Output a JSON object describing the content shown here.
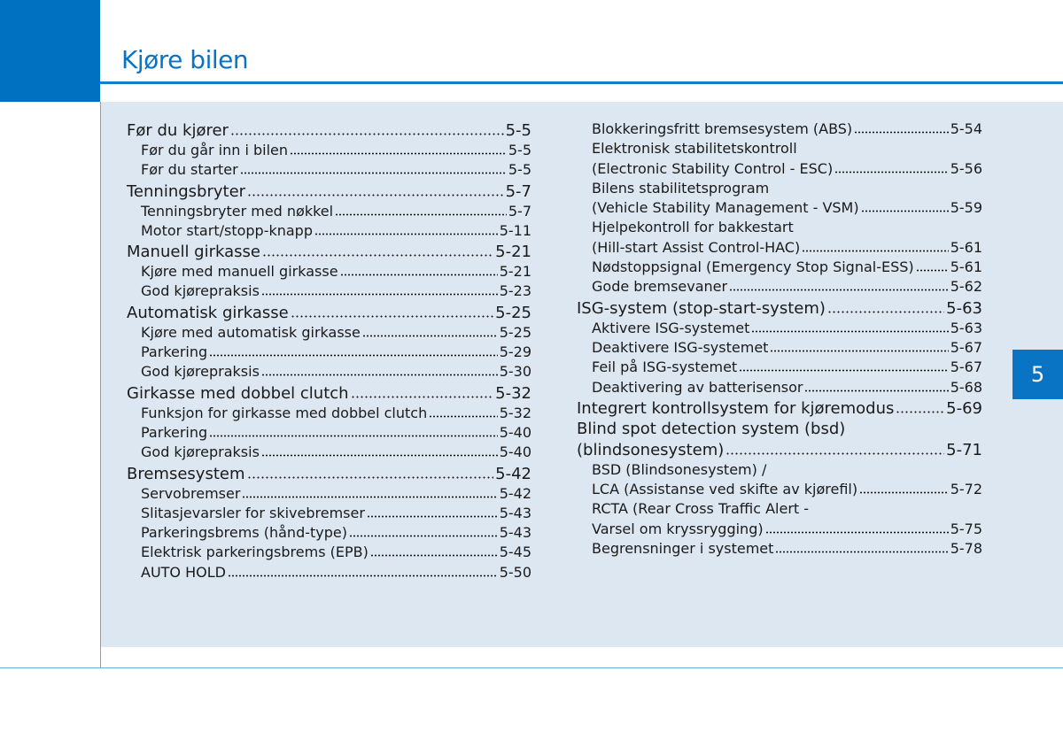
{
  "chapter": {
    "title": "Kjøre bilen",
    "tab_number": "5"
  },
  "toc_left": [
    {
      "level": 1,
      "text": "Før du kjører",
      "page": "5-5"
    },
    {
      "level": 2,
      "text": "Før du går inn i bilen",
      "page": "5-5"
    },
    {
      "level": 2,
      "text": "Før du starter",
      "page": "5-5"
    },
    {
      "level": 1,
      "text": "Tenningsbryter",
      "page": "5-7"
    },
    {
      "level": 2,
      "text": "Tenningsbryter med nøkkel",
      "page": "5-7"
    },
    {
      "level": 2,
      "text": "Motor start/stopp-knapp",
      "page": "5-11"
    },
    {
      "level": 1,
      "text": "Manuell girkasse",
      "page": "5-21"
    },
    {
      "level": 2,
      "text": "Kjøre med manuell girkasse",
      "page": "5-21"
    },
    {
      "level": 2,
      "text": "God kjørepraksis",
      "page": "5-23"
    },
    {
      "level": 1,
      "text": "Automatisk girkasse",
      "page": "5-25"
    },
    {
      "level": 2,
      "text": "Kjøre med automatisk girkasse",
      "page": "5-25"
    },
    {
      "level": 2,
      "text": "Parkering",
      "page": "5-29"
    },
    {
      "level": 2,
      "text": "God kjørepraksis",
      "page": "5-30"
    },
    {
      "level": 1,
      "text": "Girkasse med dobbel clutch",
      "page": "5-32"
    },
    {
      "level": 2,
      "text": "Funksjon for girkasse med dobbel clutch",
      "page": "5-32"
    },
    {
      "level": 2,
      "text": "Parkering",
      "page": "5-40"
    },
    {
      "level": 2,
      "text": "God kjørepraksis",
      "page": "5-40"
    },
    {
      "level": 1,
      "text": "Bremsesystem",
      "page": "5-42"
    },
    {
      "level": 2,
      "text": "Servobremser",
      "page": "5-42"
    },
    {
      "level": 2,
      "text": "Slitasjevarsler for skivebremser",
      "page": "5-43"
    },
    {
      "level": 2,
      "text": "Parkeringsbrems (hånd-type)",
      "page": "5-43"
    },
    {
      "level": 2,
      "text": "Elektrisk parkeringsbrems (EPB)",
      "page": "5-45"
    },
    {
      "level": 2,
      "text": "AUTO HOLD",
      "page": "5-50"
    }
  ],
  "toc_right": [
    {
      "level": 2,
      "text": "Blokkeringsfritt bremsesystem (ABS)",
      "page": "5-54"
    },
    {
      "level": 2,
      "text": "Elektronisk stabilitetskontroll",
      "page": ""
    },
    {
      "level": 2,
      "text": "(Electronic Stability Control - ESC)",
      "page": "5-56"
    },
    {
      "level": 2,
      "text": "Bilens stabilitetsprogram",
      "page": ""
    },
    {
      "level": 2,
      "text": "(Vehicle Stability Management - VSM)",
      "page": "5-59"
    },
    {
      "level": 2,
      "text": "Hjelpekontroll for bakkestart",
      "page": ""
    },
    {
      "level": 2,
      "text": "(Hill-start Assist Control-HAC)",
      "page": "5-61"
    },
    {
      "level": 2,
      "text": "Nødstoppsignal (Emergency Stop Signal-ESS)",
      "page": "5-61"
    },
    {
      "level": 2,
      "text": "Gode bremsevaner",
      "page": "5-62"
    },
    {
      "level": 1,
      "text": "ISG-system (stop-start-system)",
      "page": "5-63"
    },
    {
      "level": 2,
      "text": "Aktivere ISG-systemet",
      "page": "5-63"
    },
    {
      "level": 2,
      "text": "Deaktivere ISG-systemet",
      "page": "5-67"
    },
    {
      "level": 2,
      "text": "Feil på ISG-systemet",
      "page": "5-67"
    },
    {
      "level": 2,
      "text": "Deaktivering av batterisensor",
      "page": "5-68"
    },
    {
      "level": 1,
      "text": "Integrert kontrollsystem for kjøremodus",
      "page": "5-69"
    },
    {
      "level": 1,
      "text": "Blind spot detection system (bsd)",
      "page": ""
    },
    {
      "level": 1,
      "text": "(blindsonesystem)",
      "page": "5-71"
    },
    {
      "level": 2,
      "text": "BSD (Blindsonesystem) /",
      "page": ""
    },
    {
      "level": 2,
      "text": "LCA (Assistanse ved skifte av kjørefil)",
      "page": "5-72"
    },
    {
      "level": 2,
      "text": "RCTA (Rear Cross Traffic Alert -",
      "page": ""
    },
    {
      "level": 2,
      "text": "Varsel om kryssrygging)",
      "page": "5-75"
    },
    {
      "level": 2,
      "text": "Begrensninger i systemet",
      "page": "5-78"
    }
  ],
  "colors": {
    "accent": "#0a74c4",
    "panel": "#dde7f2",
    "corner": "#0070c0"
  }
}
